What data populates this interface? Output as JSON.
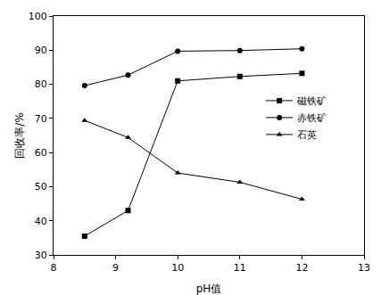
{
  "chart_data": {
    "type": "line",
    "x_label": "pH值",
    "y_label": "回收率/%",
    "x": [
      8.5,
      9.2,
      10,
      11,
      12
    ],
    "series": [
      {
        "name": "磁铁矿",
        "color": "#000000",
        "marker": "square",
        "values": [
          35.5,
          43,
          81,
          82.3,
          83.2
        ]
      },
      {
        "name": "赤铁矿",
        "color": "#000000",
        "marker": "circle",
        "values": [
          79.6,
          82.7,
          89.7,
          89.9,
          90.4
        ]
      },
      {
        "name": "石英",
        "color": "#000000",
        "marker": "triangle-up",
        "values": [
          69.4,
          64.4,
          54,
          51.3,
          46.3
        ]
      }
    ],
    "xlim": [
      8,
      13
    ],
    "xticks": [
      8,
      9,
      10,
      11,
      12,
      13
    ],
    "ylim": [
      30,
      100
    ],
    "yticks": [
      30,
      40,
      50,
      60,
      70,
      80,
      90,
      100
    ],
    "grid": false,
    "legend": "right"
  }
}
